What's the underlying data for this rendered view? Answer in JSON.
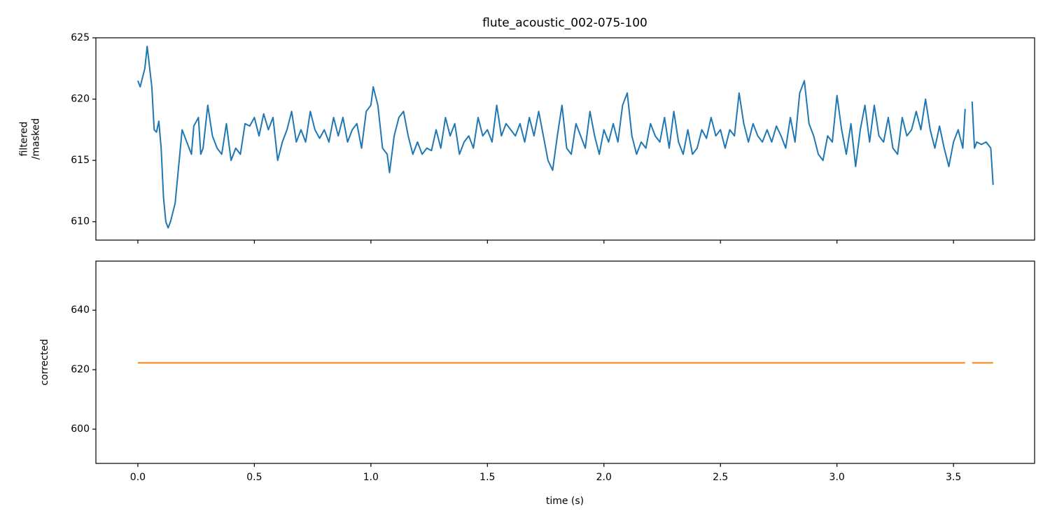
{
  "chart_data": [
    {
      "type": "line",
      "title": "flute_acoustic_002-075-100",
      "ylabel": [
        "filtered",
        "/masked"
      ],
      "color": "#1f77b4",
      "x": [
        0.0,
        0.01,
        0.03,
        0.04,
        0.06,
        0.07,
        0.08,
        0.09,
        0.1,
        0.11,
        0.12,
        0.13,
        0.14,
        0.16,
        0.18,
        0.19,
        0.21,
        0.23,
        0.24,
        0.26,
        0.27,
        0.28,
        0.3,
        0.32,
        0.34,
        0.36,
        0.38,
        0.39,
        0.4,
        0.42,
        0.44,
        0.46,
        0.48,
        0.5,
        0.52,
        0.54,
        0.56,
        0.58,
        0.6,
        0.62,
        0.64,
        0.66,
        0.68,
        0.7,
        0.72,
        0.74,
        0.76,
        0.78,
        0.8,
        0.82,
        0.84,
        0.86,
        0.88,
        0.9,
        0.92,
        0.94,
        0.96,
        0.98,
        1.0,
        1.01,
        1.03,
        1.05,
        1.07,
        1.08,
        1.1,
        1.12,
        1.14,
        1.16,
        1.18,
        1.2,
        1.22,
        1.24,
        1.26,
        1.28,
        1.3,
        1.32,
        1.34,
        1.36,
        1.38,
        1.4,
        1.42,
        1.44,
        1.46,
        1.48,
        1.5,
        1.52,
        1.54,
        1.56,
        1.58,
        1.6,
        1.62,
        1.64,
        1.66,
        1.68,
        1.7,
        1.72,
        1.74,
        1.76,
        1.78,
        1.8,
        1.82,
        1.84,
        1.86,
        1.88,
        1.9,
        1.92,
        1.94,
        1.96,
        1.98,
        2.0,
        2.02,
        2.04,
        2.06,
        2.08,
        2.1,
        2.12,
        2.14,
        2.16,
        2.18,
        2.2,
        2.22,
        2.24,
        2.26,
        2.28,
        2.3,
        2.32,
        2.34,
        2.36,
        2.38,
        2.4,
        2.42,
        2.44,
        2.46,
        2.48,
        2.5,
        2.52,
        2.54,
        2.56,
        2.58,
        2.6,
        2.62,
        2.64,
        2.66,
        2.68,
        2.7,
        2.72,
        2.74,
        2.76,
        2.78,
        2.8,
        2.82,
        2.84,
        2.86,
        2.88,
        2.9,
        2.92,
        2.94,
        2.96,
        2.98,
        3.0,
        3.02,
        3.04,
        3.06,
        3.08,
        3.1,
        3.12,
        3.14,
        3.16,
        3.18,
        3.2,
        3.22,
        3.24,
        3.26,
        3.28,
        3.3,
        3.32,
        3.34,
        3.36,
        3.38,
        3.4,
        3.42,
        3.44,
        3.46,
        3.48,
        3.5,
        3.52,
        3.54,
        3.55,
        3.56,
        3.58,
        3.59,
        3.6,
        3.62,
        3.64,
        3.66,
        3.67
      ],
      "values": [
        621.5,
        621.0,
        622.5,
        624.3,
        621.0,
        617.5,
        617.3,
        618.2,
        616.0,
        612.0,
        610.0,
        609.5,
        610.0,
        611.5,
        615.5,
        617.5,
        616.5,
        615.5,
        617.8,
        618.5,
        615.5,
        616.0,
        619.5,
        617.0,
        616.0,
        615.5,
        618.0,
        616.5,
        615.0,
        616.0,
        615.5,
        618.0,
        617.8,
        618.5,
        617.0,
        618.8,
        617.5,
        618.5,
        615.0,
        616.5,
        617.5,
        619.0,
        616.5,
        617.5,
        616.5,
        619.0,
        617.5,
        616.8,
        617.5,
        616.5,
        618.5,
        617.0,
        618.5,
        616.5,
        617.5,
        618.0,
        616.0,
        619.0,
        619.5,
        621.0,
        619.5,
        616.0,
        615.5,
        614.0,
        617.0,
        618.5,
        619.0,
        617.0,
        615.5,
        616.5,
        615.5,
        616.0,
        615.8,
        617.5,
        616.0,
        618.5,
        617.0,
        618.0,
        615.5,
        616.5,
        617.0,
        616.0,
        618.5,
        617.0,
        617.5,
        616.5,
        619.5,
        617.0,
        618.0,
        617.5,
        617.0,
        618.0,
        616.5,
        618.5,
        617.0,
        619.0,
        617.0,
        615.0,
        614.2,
        617.0,
        619.5,
        616.0,
        615.5,
        618.0,
        617.0,
        616.0,
        619.0,
        617.0,
        615.5,
        617.5,
        616.5,
        618.0,
        616.5,
        619.5,
        620.5,
        617.0,
        615.5,
        616.5,
        616.0,
        618.0,
        617.0,
        616.5,
        618.5,
        616.0,
        619.0,
        616.5,
        615.5,
        617.5,
        615.5,
        616.0,
        617.5,
        616.8,
        618.5,
        617.0,
        617.5,
        616.0,
        617.5,
        617.0,
        620.5,
        618.0,
        616.5,
        618.0,
        617.0,
        616.5,
        617.5,
        616.5,
        617.8,
        617.0,
        616.0,
        618.5,
        616.5,
        620.5,
        621.5,
        618.0,
        617.0,
        615.5,
        615.0,
        617.0,
        616.5,
        620.3,
        617.5,
        615.5,
        618.0,
        614.5,
        617.5,
        619.5,
        616.5,
        619.5,
        617.0,
        616.5,
        618.5,
        616.0,
        615.5,
        618.5,
        617.0,
        617.5,
        619.0,
        617.5,
        620.0,
        617.5,
        616.0,
        617.8,
        616.0,
        614.5,
        616.5,
        617.5,
        616.0,
        619.2,
        null,
        619.8,
        616.0,
        616.5,
        616.3,
        616.5,
        616.0,
        613.0
      ],
      "xlim": [
        -0.18,
        3.848
      ],
      "ylim": [
        608.5,
        625
      ],
      "yticks": [
        610,
        615,
        620,
        625
      ],
      "xticks": [
        {
          "value": 0,
          "label": "0.0"
        },
        0.5,
        {
          "value": 1,
          "label": "1.0"
        },
        1.5,
        {
          "value": 2,
          "label": "2.0"
        },
        2.5,
        {
          "value": 3,
          "label": "3.0"
        },
        3.5
      ],
      "show_xtick_labels": false
    },
    {
      "type": "line",
      "ylabel": [
        "corrected"
      ],
      "xlabel": "time (s)",
      "color": "#ff7f0e",
      "x": [
        0.0,
        3.55,
        3.56,
        3.58,
        3.67
      ],
      "values": [
        622.3,
        622.3,
        null,
        622.3,
        622.3
      ],
      "xlim": [
        -0.18,
        3.848
      ],
      "ylim": [
        588.5,
        656.5
      ],
      "yticks": [
        600,
        620,
        640
      ],
      "xticks": [
        {
          "value": 0,
          "label": "0.0"
        },
        0.5,
        {
          "value": 1,
          "label": "1.0"
        },
        1.5,
        {
          "value": 2,
          "label": "2.0"
        },
        2.5,
        {
          "value": 3,
          "label": "3.0"
        },
        3.5
      ],
      "show_xtick_labels": true
    }
  ]
}
